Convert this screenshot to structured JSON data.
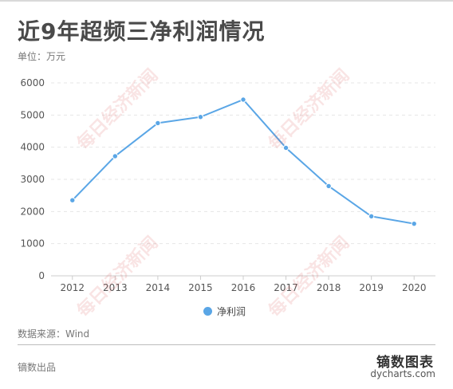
{
  "title": "近9年超频三净利润情况",
  "unit_label": "单位：万元",
  "source_label": "数据来源：Wind",
  "credit_label": "镝数出品",
  "brand": {
    "name_cn": "镝数图表",
    "name_en": "dycharts.com"
  },
  "watermark_text": "每日经济新闻",
  "colors": {
    "series": "#5aa6e6",
    "grid": "#e6e6e6",
    "axis": "#cccccc",
    "tick_text": "#555555"
  },
  "chart_data": {
    "type": "line",
    "x": [
      "2012",
      "2013",
      "2014",
      "2015",
      "2016",
      "2017",
      "2018",
      "2019",
      "2020"
    ],
    "series": [
      {
        "name": "净利润",
        "values": [
          2350,
          3720,
          4750,
          4940,
          5480,
          3980,
          2790,
          1850,
          1620
        ]
      }
    ],
    "title": "近9年超频三净利润情况",
    "ylabel": "单位：万元",
    "ylim": [
      0,
      6000
    ],
    "yticks": [
      0,
      1000,
      2000,
      3000,
      4000,
      5000,
      6000
    ],
    "grid": true,
    "legend": "bottom"
  }
}
